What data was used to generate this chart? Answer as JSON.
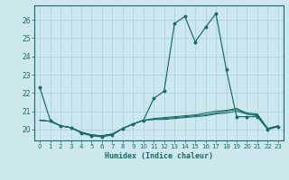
{
  "xlabel": "Humidex (Indice chaleur)",
  "x": [
    0,
    1,
    2,
    3,
    4,
    5,
    6,
    7,
    8,
    9,
    10,
    11,
    12,
    13,
    14,
    15,
    16,
    17,
    18,
    19,
    20,
    21,
    22,
    23
  ],
  "line1": [
    22.3,
    20.5,
    20.2,
    20.1,
    19.8,
    19.65,
    19.6,
    19.7,
    20.05,
    20.3,
    20.5,
    21.7,
    22.1,
    25.8,
    26.2,
    24.8,
    25.6,
    26.35,
    23.3,
    20.7,
    20.7,
    20.7,
    20.0,
    20.15
  ],
  "line2": [
    20.5,
    20.45,
    20.2,
    20.1,
    19.85,
    19.7,
    19.65,
    19.75,
    20.05,
    20.3,
    20.5,
    20.55,
    20.55,
    20.6,
    20.65,
    20.7,
    20.75,
    20.85,
    20.9,
    21.0,
    20.85,
    20.75,
    20.05,
    20.15
  ],
  "line3": [
    20.5,
    20.45,
    20.2,
    20.1,
    19.85,
    19.7,
    19.65,
    19.75,
    20.05,
    20.3,
    20.5,
    20.55,
    20.6,
    20.65,
    20.7,
    20.75,
    20.8,
    20.9,
    21.0,
    21.1,
    20.85,
    20.8,
    20.05,
    20.2
  ],
  "line4": [
    20.5,
    20.45,
    20.2,
    20.1,
    19.85,
    19.7,
    19.65,
    19.75,
    20.05,
    20.3,
    20.5,
    20.6,
    20.65,
    20.7,
    20.75,
    20.8,
    20.9,
    21.0,
    21.05,
    21.15,
    20.9,
    20.85,
    20.05,
    20.2
  ],
  "ylim": [
    19.4,
    26.8
  ],
  "yticks": [
    20,
    21,
    22,
    23,
    24,
    25,
    26
  ],
  "xlim": [
    -0.5,
    23.5
  ],
  "line_color": "#1a6b62",
  "bg_color": "#cce8ec",
  "grid_color": "#aacdd4"
}
